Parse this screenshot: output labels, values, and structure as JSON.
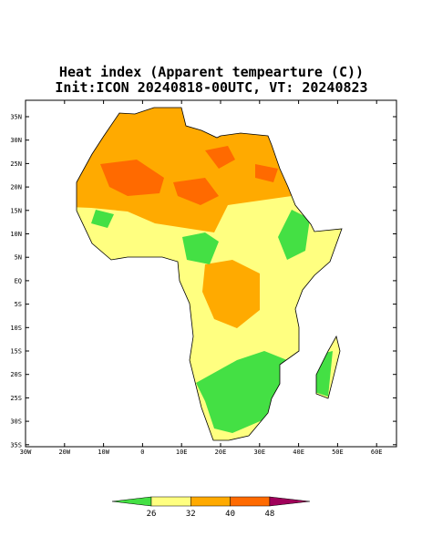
{
  "header": {
    "title": "Heat index (Apparent tempearture (C))",
    "subtitle": "Init:ICON 20240818-00UTC, VT: 20240823"
  },
  "axes": {
    "lat_labels": [
      "35N",
      "30N",
      "25N",
      "20N",
      "15N",
      "10N",
      "5N",
      "EQ",
      "5S",
      "10S",
      "15S",
      "20S",
      "25S",
      "30S",
      "35S"
    ],
    "lon_labels": [
      "30W",
      "20W",
      "10W",
      "0",
      "10E",
      "20E",
      "30E",
      "40E",
      "50E",
      "60E"
    ]
  },
  "colorbar": {
    "levels": [
      26,
      32,
      40,
      48
    ],
    "colors": [
      "#44e044",
      "#ffff80",
      "#ffaa00",
      "#ff6a00",
      "#a0005a"
    ]
  }
}
